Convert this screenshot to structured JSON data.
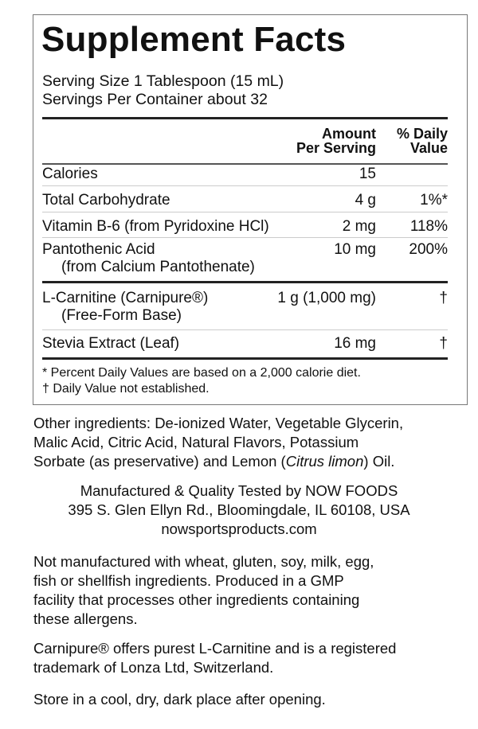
{
  "title": "Supplement Facts",
  "serving_size": "Serving Size 1 Tablespoon (15 mL)",
  "servings_per_container": "Servings Per Container about 32",
  "header": {
    "amount_1": "Amount",
    "amount_2": "Per Serving",
    "dv_1": "% Daily",
    "dv_2": "Value"
  },
  "rows": [
    {
      "name": "Calories",
      "amount": "15",
      "dv": ""
    },
    {
      "name": "Total Carbohydrate",
      "amount": "4 g",
      "dv": "1%*"
    },
    {
      "name": "Vitamin B-6 (from Pyridoxine HCl)",
      "amount": "2 mg",
      "dv": "118%"
    },
    {
      "name": "Pantothenic Acid",
      "sub": "(from Calcium Pantothenate)",
      "amount": "10 mg",
      "dv": "200%"
    },
    {
      "name": "L-Carnitine (Carnipure®)",
      "sub": "(Free-Form Base)",
      "amount": "1 g (1,000 mg)",
      "dv": "†"
    },
    {
      "name": "Stevia Extract (Leaf)",
      "amount": "16 mg",
      "dv": "†"
    }
  ],
  "footnotes": [
    "* Percent Daily Values are based on a 2,000 calorie diet.",
    "† Daily Value not established."
  ],
  "other_ingredients": {
    "lines": [
      "Other ingredients: De-ionized Water, Vegetable Glycerin,",
      "Malic Acid, Citric Acid, Natural Flavors, Potassium",
      "Sorbate (as preservative) and Lemon ("
    ],
    "italic": "Citrus limon",
    "end": ") Oil."
  },
  "manufacturer": [
    "Manufactured & Quality Tested by NOW FOODS",
    "395 S. Glen Ellyn Rd., Bloomingdale, IL 60108, USA",
    "nowsportsproducts.com"
  ],
  "allergen": [
    "Not manufactured with wheat, gluten, soy, milk, egg,",
    "fish or shellfish ingredients. Produced in a GMP",
    "facility that processes other ingredients containing",
    "these allergens."
  ],
  "trademark": [
    "Carnipure® offers purest L-Carnitine and is a registered",
    "trademark of Lonza Ltd, Switzerland."
  ],
  "storage": "Store in a cool, dry, dark place after opening."
}
